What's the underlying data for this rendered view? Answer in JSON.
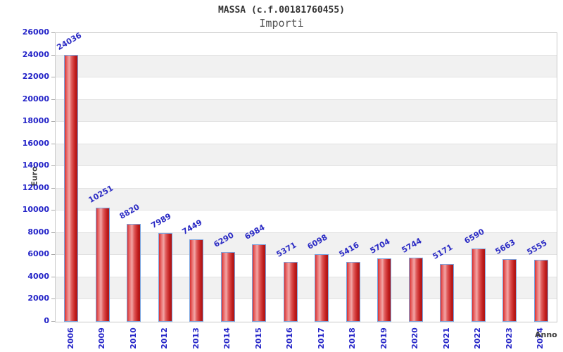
{
  "header": {
    "title": "MASSA (c.f.00181760455)",
    "subtitle": "Importi"
  },
  "chart_data": {
    "type": "bar",
    "title": "MASSA (c.f.00181760455)",
    "subtitle": "Importi",
    "xlabel": "Anno",
    "ylabel": "Euro",
    "categories": [
      "2006",
      "2009",
      "2010",
      "2012",
      "2013",
      "2014",
      "2015",
      "2016",
      "2017",
      "2018",
      "2019",
      "2020",
      "2021",
      "2022",
      "2023",
      "2024"
    ],
    "values": [
      24036,
      10251,
      8820,
      7989,
      7449,
      6290,
      6984,
      5371,
      6098,
      5416,
      5704,
      5744,
      5171,
      6590,
      5663,
      5555
    ],
    "ylim": [
      0,
      26000
    ],
    "ytick_step": 2000,
    "yticks": [
      0,
      2000,
      4000,
      6000,
      8000,
      10000,
      12000,
      14000,
      16000,
      18000,
      20000,
      22000,
      24000,
      26000
    ],
    "legend": "none",
    "grid": "horizontal-bands",
    "value_labels_shown": true,
    "colors": {
      "bar_fill_edge": "#d83030",
      "bar_fill_highlight": "#f2a6a6",
      "bar_fill_dark": "#ad1414",
      "bar_border": "#7aa5e0",
      "tick_label": "#2424c8",
      "value_label": "#2b2bc4",
      "band_alt": "#f1f1f1",
      "band_main": "#ffffff",
      "gridline": "#e2e2e2",
      "plot_border": "#c9c9c9",
      "axis_title": "#3c3c3c",
      "title": "#333333",
      "subtitle": "#555555",
      "background": "#ffffff"
    }
  }
}
